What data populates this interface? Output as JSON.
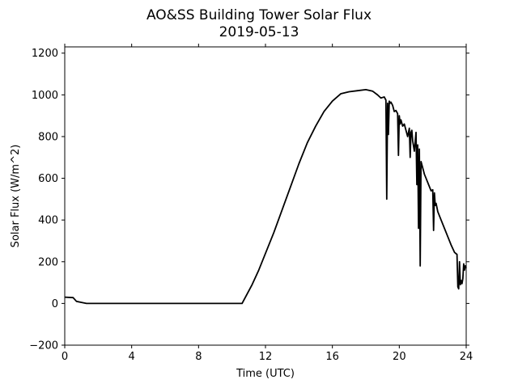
{
  "chart_data": {
    "type": "line",
    "title": "AO&SS Building Tower Solar Flux",
    "subtitle": "2019-05-13",
    "xlabel": "Time (UTC)",
    "ylabel": "Solar Flux (W/m^2)",
    "xlim": [
      0,
      24
    ],
    "ylim": [
      -200,
      1230
    ],
    "xticks": [
      0,
      4,
      8,
      12,
      16,
      20,
      24
    ],
    "yticks": [
      -200,
      0,
      200,
      400,
      600,
      800,
      1000,
      1200
    ],
    "grid": false,
    "legend": "none",
    "series": [
      {
        "color": "#000000",
        "x": [
          0,
          0.5,
          0.7,
          1.0,
          1.3,
          2,
          4,
          6,
          8,
          10,
          10.6,
          10.8,
          11.2,
          11.6,
          12.0,
          12.5,
          13.0,
          13.5,
          14.0,
          14.5,
          15.0,
          15.5,
          16.0,
          16.5,
          17.0,
          17.5,
          18.0,
          18.4,
          18.7,
          18.9,
          19.1,
          19.2,
          19.25,
          19.3,
          19.35,
          19.4,
          19.45,
          19.5,
          19.6,
          19.7,
          19.8,
          19.9,
          19.95,
          20.0,
          20.05,
          20.1,
          20.2,
          20.3,
          20.4,
          20.5,
          20.6,
          20.65,
          20.7,
          20.75,
          20.8,
          20.9,
          21.0,
          21.05,
          21.1,
          21.15,
          21.2,
          21.25,
          21.3,
          21.4,
          21.5,
          21.6,
          21.7,
          21.8,
          21.9,
          22.0,
          22.05,
          22.1,
          22.15,
          22.2,
          22.3,
          22.5,
          22.7,
          22.9,
          23.1,
          23.3,
          23.45,
          23.5,
          23.55,
          23.6,
          23.65,
          23.7,
          23.75,
          23.8,
          23.85,
          23.9,
          23.95,
          24.0
        ],
        "y": [
          30,
          28,
          10,
          5,
          0,
          0,
          0,
          0,
          0,
          0,
          0,
          30,
          90,
          160,
          240,
          340,
          450,
          560,
          670,
          770,
          850,
          920,
          970,
          1005,
          1015,
          1020,
          1025,
          1018,
          1000,
          985,
          990,
          975,
          500,
          960,
          810,
          970,
          960,
          965,
          950,
          920,
          925,
          910,
          710,
          900,
          860,
          880,
          850,
          860,
          830,
          800,
          840,
          700,
          820,
          830,
          780,
          730,
          820,
          570,
          760,
          360,
          740,
          180,
          680,
          650,
          620,
          600,
          580,
          560,
          540,
          545,
          350,
          530,
          470,
          480,
          440,
          400,
          360,
          320,
          280,
          245,
          235,
          80,
          70,
          200,
          90,
          110,
          95,
          120,
          190,
          160,
          180,
          170
        ]
      }
    ]
  }
}
